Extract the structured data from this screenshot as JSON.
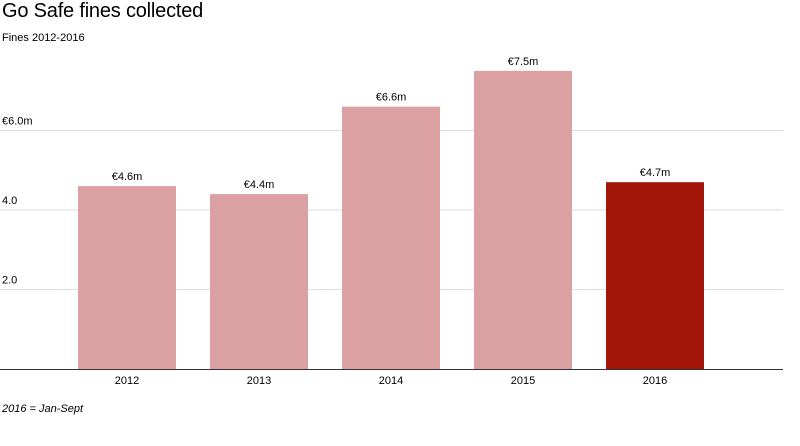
{
  "chart_data": {
    "type": "bar",
    "title": "Go Safe fines collected",
    "subtitle": "Fines 2012-2016",
    "note": "2016 = Jan-Sept",
    "categories": [
      "2012",
      "2013",
      "2014",
      "2015",
      "2016"
    ],
    "values": [
      4.6,
      4.4,
      6.6,
      7.5,
      4.7
    ],
    "data_labels": [
      "€4.6m",
      "€4.4m",
      "€6.6m",
      "€7.5m",
      "€4.7m"
    ],
    "ylim": [
      0,
      8
    ],
    "yticks": [
      {
        "value": 2,
        "label": "2.0"
      },
      {
        "value": 4,
        "label": "4.0"
      },
      {
        "value": 6,
        "label": "€6.0m"
      }
    ],
    "grid": true,
    "colors": {
      "default": "#dba0a2",
      "highlight": "#a31508",
      "grid": "#dddddd",
      "axis": "#333333"
    },
    "highlight_category": "2016"
  }
}
